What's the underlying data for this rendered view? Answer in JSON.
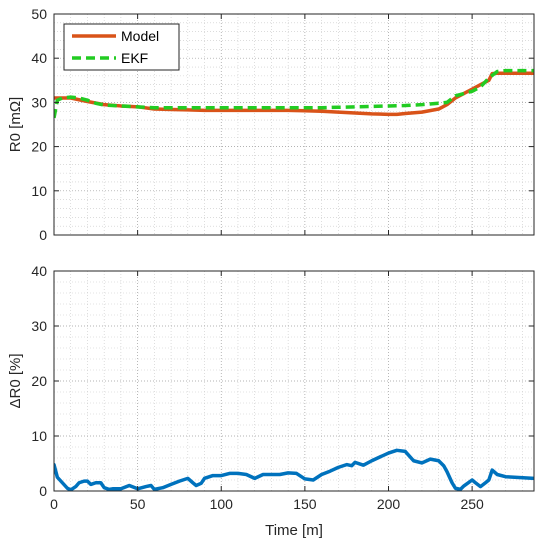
{
  "chart_data": [
    {
      "type": "line",
      "ylabel": "R0  [mΩ]",
      "xlim": [
        0,
        287
      ],
      "ylim": [
        0,
        50
      ],
      "xticks": [
        0,
        50,
        100,
        150,
        200,
        250
      ],
      "yticks": [
        0,
        10,
        20,
        30,
        40,
        50
      ],
      "grid": true,
      "minor_grid": true,
      "legend": "top-left",
      "series": [
        {
          "name": "Model",
          "color": "#d95319",
          "style": "solid",
          "x": [
            0,
            10,
            20,
            30,
            40,
            50,
            60,
            70,
            80,
            90,
            100,
            110,
            120,
            130,
            140,
            150,
            160,
            170,
            180,
            190,
            200,
            205,
            210,
            220,
            230,
            235,
            240,
            245,
            250,
            255,
            260,
            262,
            265,
            270,
            287
          ],
          "y": [
            31,
            31,
            30.2,
            29.5,
            29.2,
            29,
            28.5,
            28.4,
            28.3,
            28.2,
            28.2,
            28.2,
            28.2,
            28.2,
            28.2,
            28.1,
            28,
            27.8,
            27.6,
            27.4,
            27.3,
            27.3,
            27.5,
            27.8,
            28.5,
            29.5,
            31,
            32,
            33,
            34,
            35,
            36.5,
            36.6,
            36.6,
            36.6
          ]
        },
        {
          "name": "EKF",
          "color": "#22cc22",
          "style": "dashed",
          "x": [
            0,
            2,
            5,
            10,
            15,
            20,
            25,
            30,
            40,
            50,
            60,
            70,
            80,
            90,
            100,
            110,
            120,
            130,
            140,
            150,
            160,
            170,
            180,
            190,
            200,
            210,
            220,
            230,
            235,
            240,
            250,
            255,
            260,
            265,
            270,
            287
          ],
          "y": [
            26.5,
            30.5,
            31,
            31.2,
            31,
            30.5,
            29.8,
            29.4,
            29.2,
            29,
            28.8,
            28.8,
            28.8,
            28.8,
            28.8,
            28.8,
            28.8,
            28.8,
            28.8,
            28.8,
            28.8,
            28.9,
            29,
            29.1,
            29.2,
            29.3,
            29.5,
            29.8,
            30,
            31.5,
            32.5,
            33.5,
            35.5,
            37,
            37.2,
            37.2
          ]
        }
      ]
    },
    {
      "type": "line",
      "xlabel": "Time [m]",
      "ylabel": "ΔR0 [%]",
      "xlim": [
        0,
        287
      ],
      "ylim": [
        0,
        40
      ],
      "xticks": [
        0,
        50,
        100,
        150,
        200,
        250
      ],
      "yticks": [
        0,
        10,
        20,
        30,
        40
      ],
      "grid": true,
      "minor_grid": true,
      "series": [
        {
          "color": "#0072bd",
          "x": [
            0,
            2,
            5,
            8,
            10,
            13,
            15,
            18,
            20,
            22,
            25,
            28,
            30,
            33,
            35,
            40,
            45,
            50,
            55,
            58,
            60,
            65,
            70,
            75,
            80,
            83,
            85,
            88,
            90,
            95,
            100,
            105,
            110,
            115,
            120,
            125,
            130,
            135,
            140,
            145,
            150,
            155,
            160,
            165,
            170,
            175,
            178,
            180,
            183,
            185,
            190,
            195,
            200,
            205,
            210,
            215,
            220,
            225,
            230,
            233,
            235,
            238,
            240,
            243,
            245,
            250,
            252,
            255,
            258,
            260,
            262,
            265,
            270,
            287
          ],
          "y": [
            4.8,
            2.5,
            1.5,
            0.5,
            0.2,
            0.8,
            1.5,
            1.8,
            1.8,
            1.2,
            1.5,
            1.5,
            0.6,
            0.3,
            0.4,
            0.4,
            1,
            0.4,
            0.8,
            1,
            0.3,
            0.6,
            1.2,
            1.8,
            2.3,
            1.5,
            1,
            1.4,
            2.3,
            2.8,
            2.8,
            3.2,
            3.2,
            3,
            2.3,
            3,
            3,
            3,
            3.3,
            3.2,
            2.2,
            2,
            3,
            3.6,
            4.3,
            4.8,
            4.6,
            5.2,
            4.9,
            4.7,
            5.5,
            6.2,
            6.9,
            7.4,
            7.2,
            5.5,
            5.1,
            5.8,
            5.5,
            4.6,
            3.5,
            1.5,
            0.5,
            0.3,
            0.9,
            2,
            1.5,
            0.8,
            1.5,
            2,
            3.8,
            3,
            2.6,
            2.3
          ]
        }
      ]
    }
  ]
}
